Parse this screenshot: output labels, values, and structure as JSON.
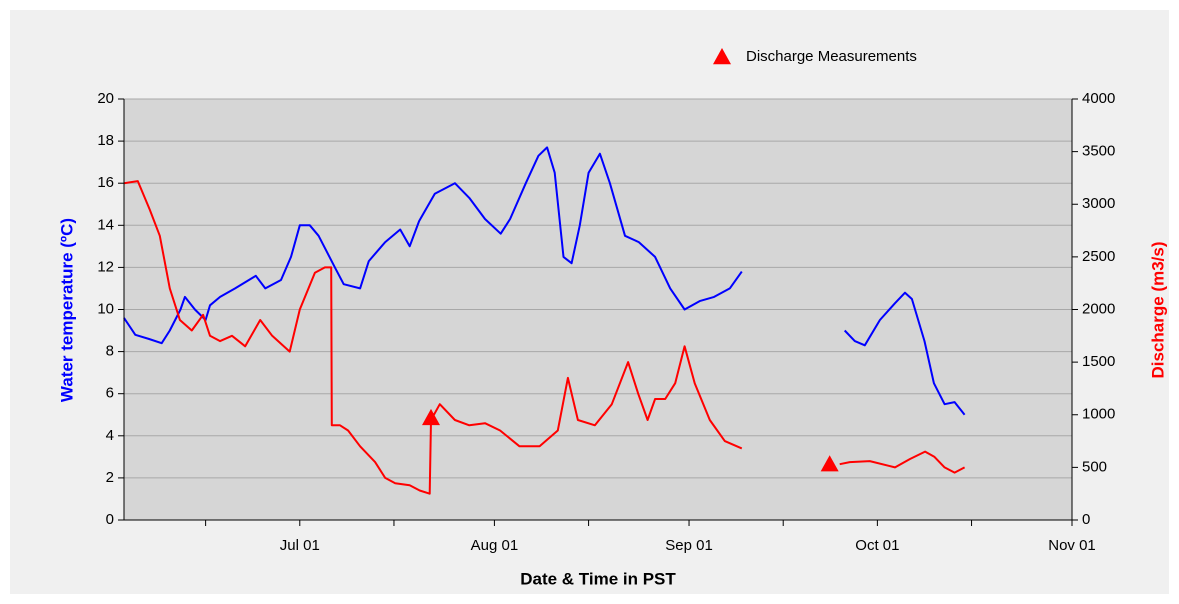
{
  "chart_data": {
    "type": "line",
    "x_label": "Date & Time in PST",
    "y_label": "Water temperature (ºC)",
    "y2_label": "Discharge (m3/s)",
    "xlim": [
      2,
      153
    ],
    "xticks": [
      {
        "value": 30,
        "label": "Jul 01"
      },
      {
        "value": 61,
        "label": "Aug 01"
      },
      {
        "value": 92,
        "label": "Sep 01"
      },
      {
        "value": 122,
        "label": "Oct 01"
      },
      {
        "value": 153,
        "label": "Nov 01"
      }
    ],
    "xminorticks": [
      15,
      45,
      76,
      107,
      137
    ],
    "ylim": [
      0,
      20
    ],
    "yticks": [
      0,
      2,
      4,
      6,
      8,
      10,
      12,
      14,
      16,
      18,
      20
    ],
    "y2lim": [
      0,
      4000
    ],
    "y2ticks": [
      0,
      500,
      1000,
      1500,
      2000,
      2500,
      3000,
      3500,
      4000
    ],
    "grid": true,
    "legend": "top-right",
    "series": [
      {
        "color": "#0000ff",
        "axis": "y",
        "x": [
          2,
          3.8,
          6,
          8,
          9.3,
          11,
          11.7,
          13.3,
          15,
          15.7,
          17.3,
          19.7,
          23,
          24.5,
          27,
          28.6,
          30,
          31.6,
          33,
          35.6,
          37,
          39.6,
          41,
          43.6,
          46,
          47.5,
          49,
          51.5,
          54.7,
          57,
          59.5,
          62,
          63.5,
          66,
          68,
          69.4,
          70.6,
          72,
          73.3,
          74.6,
          76,
          77.8,
          79.4,
          81.8,
          84,
          86.6,
          89,
          91.3,
          93.7,
          96,
          98.5,
          100.4,
          108,
          116.8,
          118.4,
          120,
          122.4,
          124.8,
          126.4,
          127.5,
          129.5,
          131,
          132.7,
          134.3,
          135.9
        ],
        "values": [
          9.6,
          8.8,
          8.6,
          8.4,
          9,
          10,
          10.6,
          10,
          9.5,
          10.2,
          10.6,
          11,
          11.6,
          11,
          11.4,
          12.5,
          14,
          14,
          13.5,
          12,
          11.2,
          11,
          12.3,
          13.2,
          13.8,
          13,
          14.2,
          15.5,
          16,
          15.3,
          14.3,
          13.6,
          14.3,
          16,
          17.3,
          17.7,
          16.5,
          12.5,
          12.2,
          14,
          16.5,
          17.4,
          16,
          13.5,
          13.2,
          12.5,
          11,
          10,
          10.4,
          10.6,
          11,
          11.8,
          null,
          9,
          8.5,
          8.3,
          9.5,
          10.3,
          10.8,
          10.5,
          8.5,
          6.5,
          5.5,
          5.6,
          5
        ]
      },
      {
        "color": "#ff0000",
        "axis": "y2",
        "x": [
          2,
          4.2,
          6.1,
          7.7,
          9.3,
          10.9,
          12.8,
          14.6,
          15.7,
          17.3,
          19.2,
          21.3,
          23.7,
          25.6,
          28.4,
          30,
          32.4,
          34,
          35,
          35.1,
          36.4,
          37.7,
          39.6,
          42,
          43.6,
          45.2,
          47.5,
          49.1,
          50.7,
          50.9,
          52.3,
          54.7,
          57,
          59.5,
          61.9,
          65,
          68.2,
          71.1,
          72.7,
          74.3,
          77,
          79.7,
          82.3,
          83.9,
          85.4,
          86.6,
          88.2,
          89.8,
          91.3,
          92.9,
          95.3,
          97.7,
          100.4,
          108,
          116,
          117.6,
          120.8,
          124.8,
          127.2,
          129.6,
          131.1,
          132.7,
          134.3,
          135.9
        ],
        "values": [
          3200,
          3220,
          2950,
          2700,
          2200,
          1900,
          1800,
          1950,
          1750,
          1700,
          1750,
          1650,
          1900,
          1750,
          1600,
          2000,
          2350,
          2400,
          2400,
          900,
          900,
          850,
          700,
          550,
          400,
          350,
          330,
          280,
          250,
          950,
          1100,
          950,
          900,
          920,
          850,
          700,
          700,
          850,
          1350,
          950,
          900,
          1100,
          1500,
          1200,
          950,
          1150,
          1150,
          1300,
          1650,
          1300,
          950,
          750,
          680,
          null,
          530,
          550,
          560,
          500,
          580,
          650,
          600,
          500,
          450,
          500
        ]
      },
      {
        "name": "Discharge Measurements",
        "color": "#ff0000",
        "axis": "y2",
        "marker": "triangle",
        "x": [
          50.9,
          114.4
        ],
        "values": [
          970,
          530
        ]
      }
    ]
  }
}
